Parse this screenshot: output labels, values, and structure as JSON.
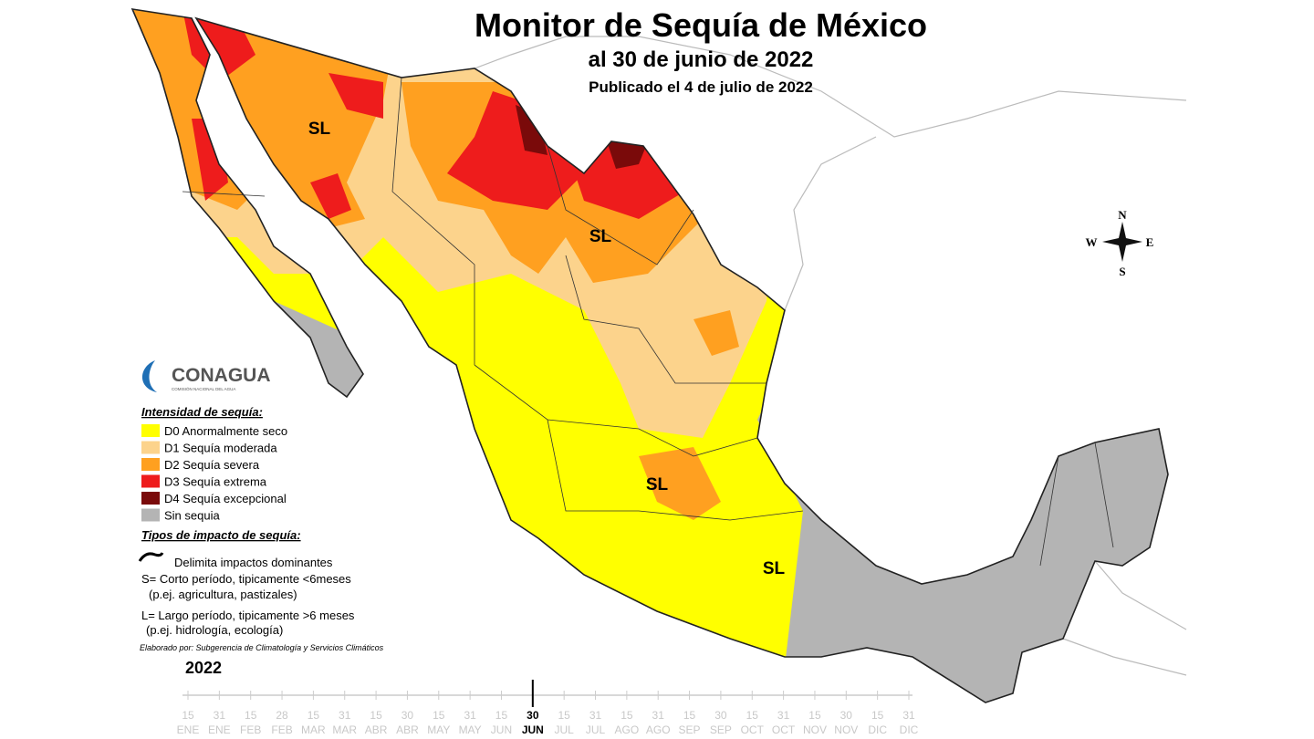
{
  "header": {
    "title": "Monitor de Sequía de México",
    "subtitle": "al 30 de junio de 2022",
    "published": "Publicado el 4 de julio de 2022"
  },
  "map": {
    "region_labels": [
      "SL",
      "SL",
      "SL",
      "SL"
    ],
    "compass": {
      "north": "N",
      "east": "E",
      "south": "S",
      "west": "W"
    }
  },
  "logo": {
    "name": "CONAGUA",
    "tagline": "COMISIÓN NACIONAL DEL AGUA"
  },
  "legend": {
    "title": "Intensidad de sequía:",
    "items": [
      {
        "label": "D0 Anormalmente seco",
        "color": "#ffff00"
      },
      {
        "label": "D1 Sequía moderada",
        "color": "#fcd38c"
      },
      {
        "label": "D2 Sequía severa",
        "color": "#ffa020"
      },
      {
        "label": "D3 Sequía extrema",
        "color": "#ee1c1c"
      },
      {
        "label": "D4 Sequía excepcional",
        "color": "#7a0a0a"
      },
      {
        "label": "Sin sequia",
        "color": "#b4b4b4"
      }
    ],
    "impact_title": "Tipos de impacto de sequía:",
    "impact_items": [
      "Delimita impactos dominantes",
      "S= Corto período, tipicamente <6meses",
      "(p.ej. agricultura, pastizales)",
      "L= Largo período, tipicamente >6 meses",
      "(p.ej. hidrología, ecología)"
    ]
  },
  "credit": "Elaborado por: Subgerencia de Climatología y Servicios Climáticos",
  "timeline": {
    "year": "2022",
    "current": 11,
    "ticks": [
      {
        "day": "15",
        "month": "ENE"
      },
      {
        "day": "31",
        "month": "ENE"
      },
      {
        "day": "15",
        "month": "FEB"
      },
      {
        "day": "28",
        "month": "FEB"
      },
      {
        "day": "15",
        "month": "MAR"
      },
      {
        "day": "31",
        "month": "MAR"
      },
      {
        "day": "15",
        "month": "ABR"
      },
      {
        "day": "30",
        "month": "ABR"
      },
      {
        "day": "15",
        "month": "MAY"
      },
      {
        "day": "31",
        "month": "MAY"
      },
      {
        "day": "15",
        "month": "JUN"
      },
      {
        "day": "30",
        "month": "JUN"
      },
      {
        "day": "15",
        "month": "JUL"
      },
      {
        "day": "31",
        "month": "JUL"
      },
      {
        "day": "15",
        "month": "AGO"
      },
      {
        "day": "31",
        "month": "AGO"
      },
      {
        "day": "15",
        "month": "SEP"
      },
      {
        "day": "30",
        "month": "SEP"
      },
      {
        "day": "15",
        "month": "OCT"
      },
      {
        "day": "31",
        "month": "OCT"
      },
      {
        "day": "15",
        "month": "NOV"
      },
      {
        "day": "30",
        "month": "NOV"
      },
      {
        "day": "15",
        "month": "DIC"
      },
      {
        "day": "31",
        "month": "DIC"
      }
    ]
  }
}
